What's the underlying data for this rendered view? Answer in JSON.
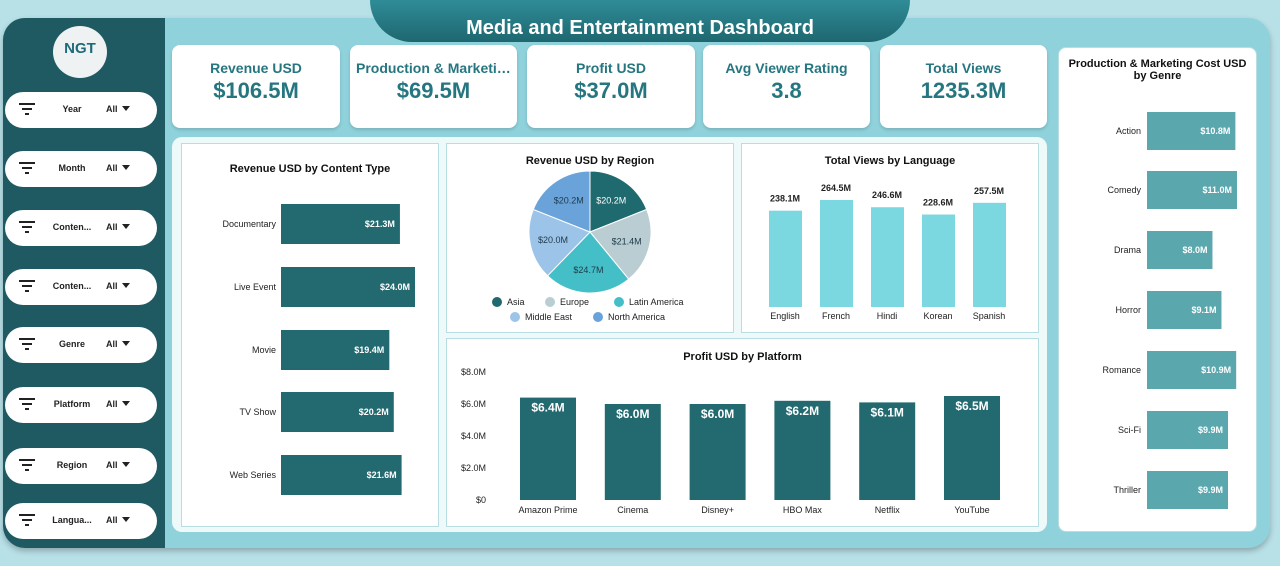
{
  "title": "Media and Entertainment Dashboard",
  "logo": "NGT",
  "filters": [
    {
      "label": "Year",
      "value": "All"
    },
    {
      "label": "Month",
      "value": "All"
    },
    {
      "label": "Conten...",
      "value": "All"
    },
    {
      "label": "Conten...",
      "value": "All"
    },
    {
      "label": "Genre",
      "value": "All"
    },
    {
      "label": "Platform",
      "value": "All"
    },
    {
      "label": "Region",
      "value": "All"
    },
    {
      "label": "Langua...",
      "value": "All"
    }
  ],
  "kpis": [
    {
      "title": "Revenue USD",
      "value": "$106.5M"
    },
    {
      "title": "Production & Marketing Cost USD",
      "value": "$69.5M"
    },
    {
      "title": "Profit USD",
      "value": "$37.0M"
    },
    {
      "title": "Avg Viewer Rating",
      "value": "3.8"
    },
    {
      "title": "Total Views",
      "value": "1235.3M"
    }
  ],
  "colors": {
    "dark_teal": "#236a70",
    "light_teal": "#7bd8e0",
    "mid_teal": "#5aa7ad"
  },
  "chart_data": [
    {
      "type": "bar",
      "orientation": "horizontal",
      "title": "Revenue USD by Content Type",
      "categories": [
        "Documentary",
        "Live Event",
        "Movie",
        "TV Show",
        "Web Series"
      ],
      "values": [
        21.3,
        24.0,
        19.4,
        20.2,
        21.6
      ],
      "labels": [
        "$21.3M",
        "$24.0M",
        "$19.4M",
        "$20.2M",
        "$21.6M"
      ]
    },
    {
      "type": "pie",
      "title": "Revenue USD by Region",
      "categories": [
        "Asia",
        "Europe",
        "Latin America",
        "Middle East",
        "North America"
      ],
      "values": [
        20.2,
        21.4,
        24.7,
        20.0,
        20.2
      ],
      "labels": [
        "$20.2M",
        "$21.4M",
        "$24.7M",
        "$20.0M",
        "$20.2M"
      ],
      "colors": [
        "#1f6a6e",
        "#b9cdd2",
        "#45bfc7",
        "#9cc3e8",
        "#6aa3da"
      ],
      "legend": "bottom"
    },
    {
      "type": "bar",
      "title": "Total Views by Language",
      "categories": [
        "English",
        "French",
        "Hindi",
        "Korean",
        "Spanish"
      ],
      "values": [
        238.1,
        264.5,
        246.6,
        228.6,
        257.5
      ],
      "labels": [
        "238.1M",
        "264.5M",
        "246.6M",
        "228.6M",
        "257.5M"
      ]
    },
    {
      "type": "bar",
      "title": "Profit USD by Platform",
      "categories": [
        "Amazon Prime",
        "Cinema",
        "Disney+",
        "HBO Max",
        "Netflix",
        "YouTube"
      ],
      "values": [
        6.4,
        6.0,
        6.0,
        6.2,
        6.1,
        6.5
      ],
      "labels": [
        "$6.4M",
        "$6.0M",
        "$6.0M",
        "$6.2M",
        "$6.1M",
        "$6.5M"
      ],
      "yticks": [
        "$0",
        "$2.0M",
        "$4.0M",
        "$6.0M",
        "$8.0M"
      ],
      "ylim": [
        0,
        8
      ]
    },
    {
      "type": "bar",
      "orientation": "horizontal",
      "title": "Production & Marketing Cost USD by Genre",
      "categories": [
        "Action",
        "Comedy",
        "Drama",
        "Horror",
        "Romance",
        "Sci-Fi",
        "Thriller"
      ],
      "values": [
        10.8,
        11.0,
        8.0,
        9.1,
        10.9,
        9.9,
        9.9
      ],
      "labels": [
        "$10.8M",
        "$11.0M",
        "$8.0M",
        "$9.1M",
        "$10.9M",
        "$9.9M",
        "$9.9M"
      ]
    }
  ]
}
